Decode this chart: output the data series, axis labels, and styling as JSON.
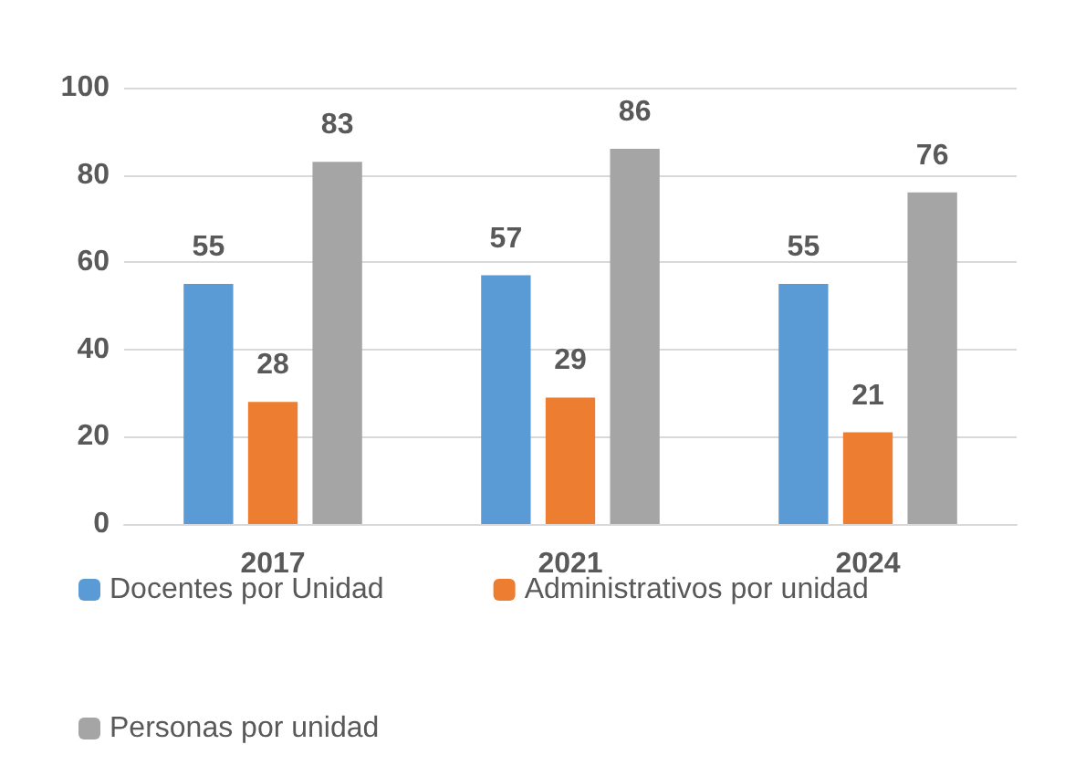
{
  "chart_data": {
    "type": "bar",
    "categories": [
      "2017",
      "2021",
      "2024"
    ],
    "series": [
      {
        "name": "Docentes por Unidad",
        "color": "#5b9bd5",
        "values": [
          55,
          57,
          55
        ]
      },
      {
        "name": "Administrativos por unidad",
        "color": "#ed7d31",
        "values": [
          28,
          29,
          21
        ]
      },
      {
        "name": "Personas por unidad",
        "color": "#a5a5a5",
        "values": [
          83,
          86,
          76
        ]
      }
    ],
    "ylim": [
      0,
      100
    ],
    "yticks": [
      0,
      20,
      40,
      60,
      80,
      100
    ],
    "grid": "y",
    "legend": "bottom",
    "data_labels": true
  }
}
